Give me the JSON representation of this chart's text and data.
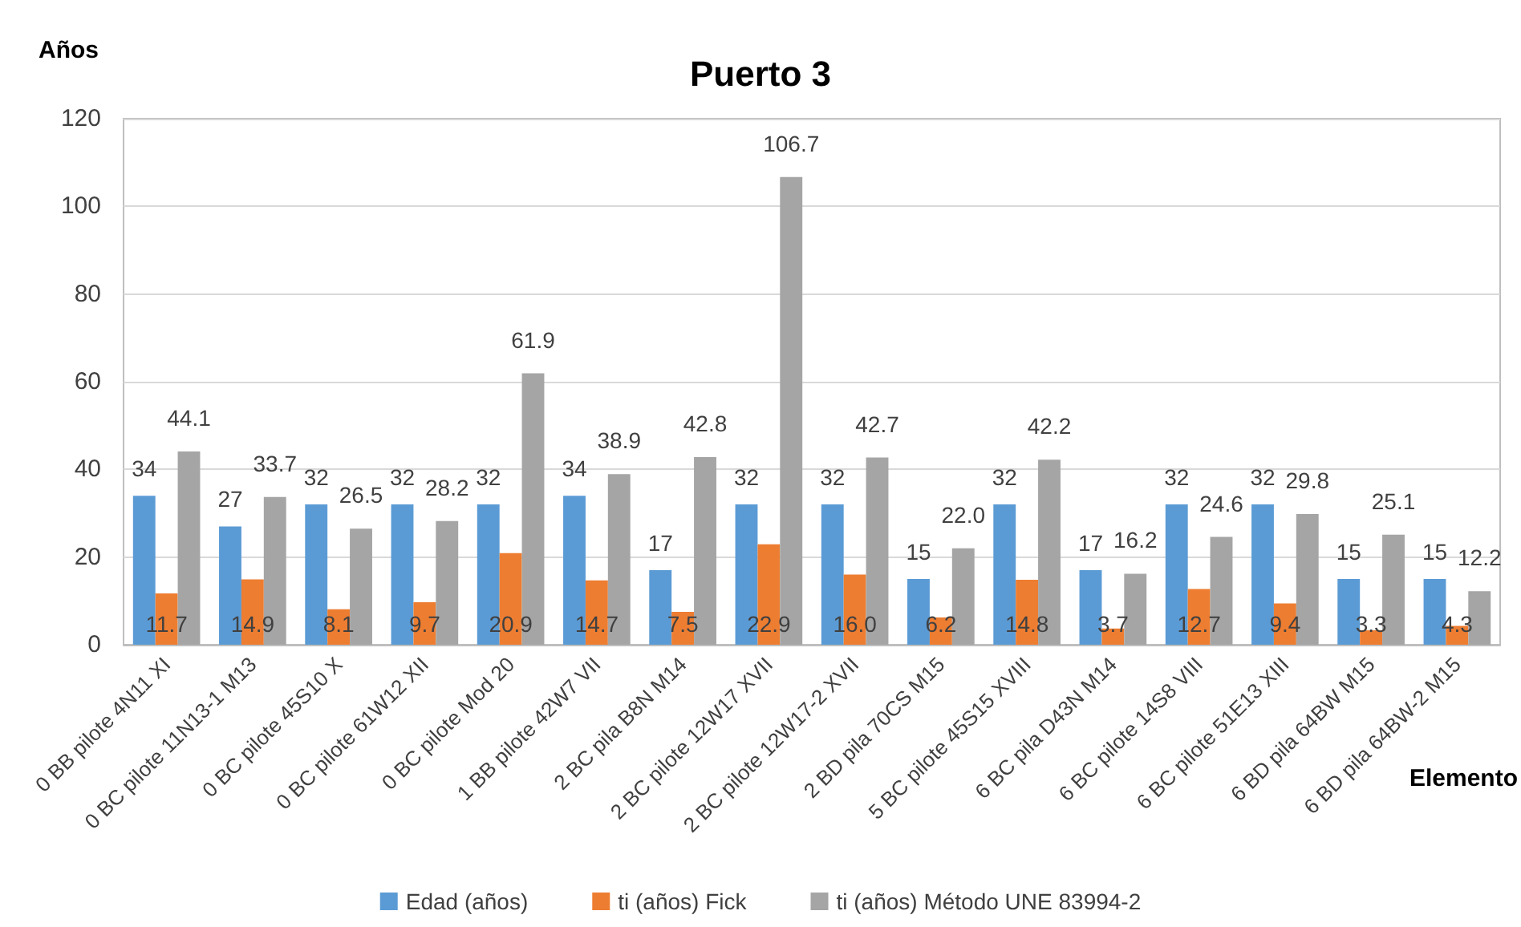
{
  "chart_data": {
    "type": "bar",
    "title": "Puerto 3",
    "xlabel": "Elemento",
    "ylabel": "Años",
    "categories": [
      "0 BB pilote 4N11 XI",
      "0 BC pilote 11N13-1 M13",
      "0 BC pilote 45S10 X",
      "0 BC pilote 61W12 XII",
      "0 BC pilote Mod 20",
      "1 BB pilote 42W7 VII",
      "2 BC pila B8N M14",
      "2 BC pilote 12W17 XVII",
      "2 BC pilote 12W17-2 XVII",
      "2 BD pila 70CS M15",
      "5 BC pilote 45S15 XVIII",
      "6 BC pila D43N M14",
      "6 BC pilote 14S8 VIII",
      "6 BC pilote 51E13 XIII",
      "6 BD pila 64BW M15",
      "6 BD pila 64BW-2 M15"
    ],
    "series": [
      {
        "name": "Edad (años)",
        "color": "#5b9bd5",
        "values": [
          34,
          27,
          32,
          32,
          32,
          34,
          17,
          32,
          32,
          15,
          32,
          17,
          32,
          32,
          15,
          15
        ],
        "value_labels": [
          "34",
          "27",
          "32",
          "32",
          "32",
          "34",
          "17",
          "32",
          "32",
          "15",
          "32",
          "17",
          "32",
          "32",
          "15",
          "15"
        ]
      },
      {
        "name": "ti (años) Fick",
        "color": "#ed7d31",
        "values": [
          11.7,
          14.9,
          8.1,
          9.7,
          20.9,
          14.7,
          7.5,
          22.9,
          16.0,
          6.2,
          14.8,
          3.7,
          12.7,
          9.4,
          3.3,
          4.3
        ],
        "value_labels": [
          "11.7",
          "14.9",
          "8.1",
          "9.7",
          "20.9",
          "14.7",
          "7.5",
          "22.9",
          "16.0",
          "6.2",
          "14.8",
          "3.7",
          "12.7",
          "9.4",
          "3.3",
          "4.3"
        ]
      },
      {
        "name": "ti (años) Método UNE 83994-2",
        "color": "#a5a5a5",
        "values": [
          44.1,
          33.7,
          26.5,
          28.2,
          61.9,
          38.9,
          42.8,
          106.7,
          42.7,
          22.0,
          42.2,
          16.2,
          24.6,
          29.8,
          25.1,
          12.2
        ],
        "value_labels": [
          "44.1",
          "33.7",
          "26.5",
          "28.2",
          "61.9",
          "38.9",
          "42.8",
          "106.7",
          "42.7",
          "22.0",
          "42.2",
          "16.2",
          "24.6",
          "29.8",
          "25.1",
          "12.2"
        ]
      }
    ],
    "ylim": [
      0,
      120
    ],
    "yticks": [
      0,
      20,
      40,
      60,
      80,
      100,
      120
    ],
    "grid": "y",
    "legend": "bottom"
  }
}
